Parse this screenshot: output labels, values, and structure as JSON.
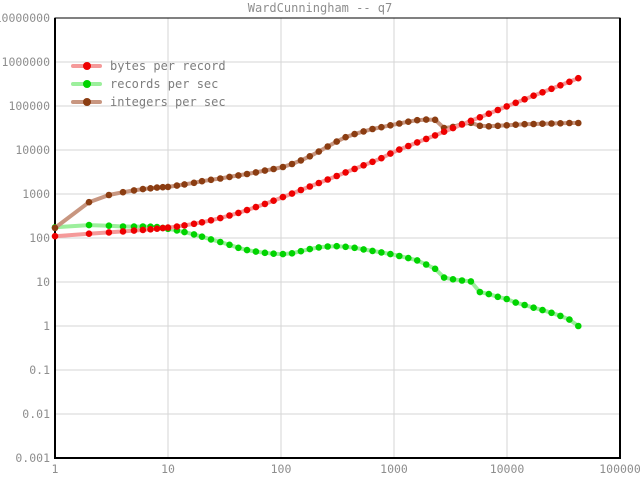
{
  "title": "WardCunningham -- q7",
  "colors": {
    "background": "#ffffff",
    "grid": "#d6d6d6",
    "border": "#000000",
    "text": "#8e8e8e",
    "legend_text": "#7d7d7d"
  },
  "x_axis": {
    "tick_labels": [
      "1",
      "10",
      "100",
      "1000",
      "10000",
      "100000"
    ]
  },
  "y_axis": {
    "tick_labels": [
      "10000000",
      "1000000",
      "100000",
      "10000",
      "1000",
      "100",
      "10",
      "1",
      "0.1",
      "0.01",
      "0.001"
    ]
  },
  "legend": {
    "items": [
      "bytes per record",
      "records per sec",
      "integers per sec"
    ]
  },
  "chart_data": {
    "type": "line",
    "title": "WardCunningham -- q7",
    "x_scale": "log",
    "y_scale": "log",
    "xlim": [
      1,
      100000
    ],
    "ylim": [
      0.001,
      10000000
    ],
    "grid": true,
    "legend_position": "top-left",
    "x_ticks": [
      1,
      10,
      100,
      1000,
      10000,
      100000
    ],
    "y_ticks": [
      10000000,
      1000000,
      100000,
      10000,
      1000,
      100,
      10,
      1,
      0.1,
      0.01,
      0.001
    ],
    "x": [
      1,
      2,
      3,
      4,
      5,
      6,
      7,
      8,
      9,
      10,
      12,
      14,
      17,
      20,
      24,
      29,
      35,
      42,
      50,
      60,
      72,
      86,
      104,
      125,
      150,
      180,
      216,
      259,
      311,
      373,
      448,
      538,
      645,
      774,
      929,
      1115,
      1338,
      1606,
      1927,
      2312,
      2775,
      3330,
      3996,
      4795,
      5754,
      6905,
      8286,
      9943,
      11932,
      14318,
      17182,
      20618,
      24742,
      29690,
      35628,
      42754
    ],
    "series": [
      {
        "name": "bytes per record",
        "dot_color": "#ee0000",
        "line_color": "#f59a9a",
        "values": [
          110,
          125,
          134,
          141,
          147,
          153,
          158,
          163,
          168,
          172,
          182,
          193,
          210,
          228,
          252,
          284,
          324,
          372,
          430,
          505,
          595,
          705,
          850,
          1020,
          1230,
          1480,
          1780,
          2140,
          2570,
          3090,
          3720,
          4480,
          5400,
          6500,
          8300,
          10200,
          12300,
          14900,
          17900,
          21500,
          26000,
          31500,
          38000,
          46000,
          55500,
          67000,
          81000,
          98000,
          118000,
          142000,
          171000,
          205000,
          246000,
          295000,
          355000,
          428000
        ]
      },
      {
        "name": "records per sec",
        "dot_color": "#00d400",
        "line_color": "#9cef9c",
        "values": [
          175,
          196,
          190,
          183,
          182,
          183,
          181,
          177,
          170,
          162,
          149,
          136,
          121,
          107,
          93,
          81,
          70,
          60,
          53,
          49,
          46,
          44,
          43,
          45,
          50,
          56,
          61,
          64,
          65,
          63,
          60,
          55,
          51,
          47,
          43,
          39,
          35,
          31,
          25,
          20,
          12.6,
          11.5,
          10.8,
          10.3,
          5.9,
          5.3,
          4.6,
          4.1,
          3.4,
          3.0,
          2.6,
          2.3,
          2.0,
          1.7,
          1.4,
          1.0
        ]
      },
      {
        "name": "integers per sec",
        "dot_color": "#8b3d12",
        "line_color": "#c89680",
        "values": [
          170,
          650,
          950,
          1100,
          1210,
          1290,
          1350,
          1400,
          1430,
          1450,
          1550,
          1650,
          1800,
          1950,
          2100,
          2250,
          2450,
          2650,
          2850,
          3100,
          3400,
          3700,
          4100,
          4800,
          5800,
          7200,
          9200,
          12000,
          15500,
          19500,
          23000,
          26500,
          30000,
          33000,
          36500,
          40000,
          44000,
          47500,
          49000,
          48500,
          31500,
          33500,
          39000,
          41500,
          35500,
          34500,
          35500,
          36500,
          37500,
          38500,
          39000,
          39500,
          40000,
          40500,
          41000,
          41000
        ]
      }
    ],
    "draw_order": [
      1,
      2,
      0
    ]
  }
}
